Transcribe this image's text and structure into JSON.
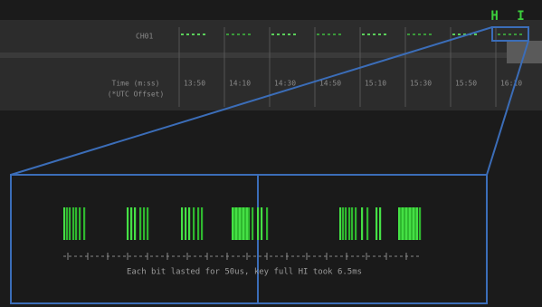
{
  "header": {
    "label": "H I",
    "channel": "CH01"
  },
  "strip": {
    "row_title": "Time (m:ss)",
    "row_subtitle": "(*UTC Offset)",
    "times": [
      "13:50",
      "14:10",
      "14:30",
      "14:50",
      "15:10",
      "15:30",
      "15:50",
      "16:10"
    ]
  },
  "timeline": {
    "caption": "Each bit lasted for 50us, key full HI took 6.5ms"
  }
}
